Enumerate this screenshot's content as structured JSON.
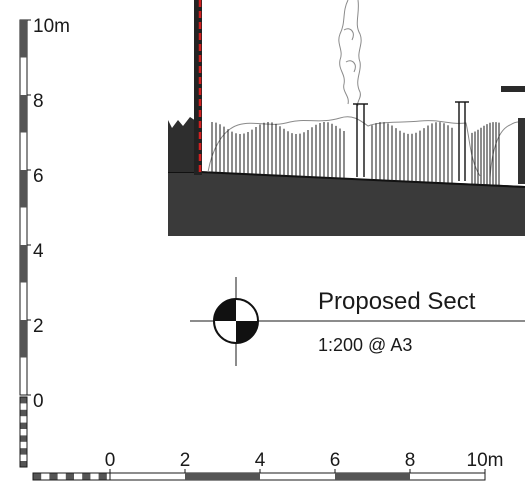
{
  "vertical_scale": {
    "ticks": [
      {
        "label": "10m",
        "value": 10
      },
      {
        "label": "8",
        "value": 8
      },
      {
        "label": "6",
        "value": 6
      },
      {
        "label": "4",
        "value": 4
      },
      {
        "label": "2",
        "value": 2
      },
      {
        "label": "0",
        "value": 0
      }
    ]
  },
  "horizontal_scale": {
    "ticks": [
      {
        "label": "0",
        "value": 0
      },
      {
        "label": "2",
        "value": 2
      },
      {
        "label": "4",
        "value": 4
      },
      {
        "label": "6",
        "value": 6
      },
      {
        "label": "8",
        "value": 8
      },
      {
        "label": "10m",
        "value": 10
      }
    ]
  },
  "title_block": {
    "title": "Proposed Sect",
    "scale_note": "1:200 @ A3"
  },
  "colors": {
    "ink": "#1a1a1a",
    "ground_fill": "#3a3a3a",
    "scale_dark": "#555555",
    "boundary_red": "#d42020",
    "sketch_grey": "#8a8a8a"
  }
}
